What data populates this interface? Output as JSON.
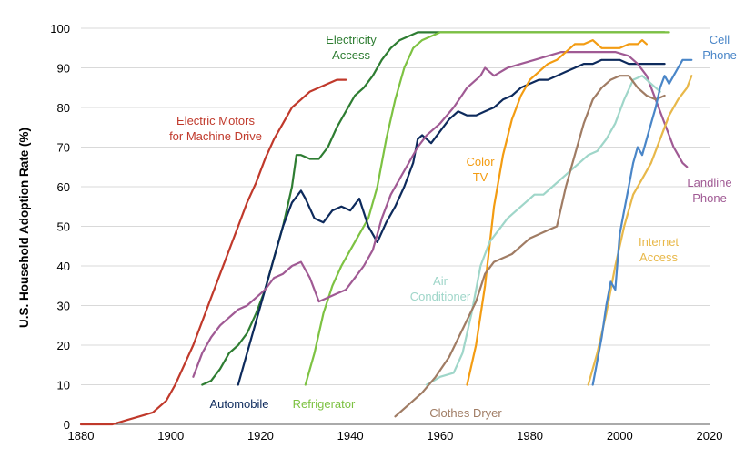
{
  "chart_data": {
    "type": "line",
    "title": "",
    "xlabel": "",
    "ylabel": "U.S. Household Adoption Rate (%)",
    "xlim": [
      1880,
      2020
    ],
    "ylim": [
      0,
      100
    ],
    "x_ticks": [
      "1880",
      "1900",
      "1920",
      "1940",
      "1960",
      "1980",
      "2000",
      "2020"
    ],
    "y_ticks": [
      "0",
      "10",
      "20",
      "30",
      "40",
      "50",
      "60",
      "70",
      "80",
      "90",
      "100"
    ],
    "grid": "horizontal",
    "legend": "none",
    "series": [
      {
        "name": "Electric Motors for Machine Drive",
        "label_lines": [
          "Electric Motors",
          "for Machine Drive"
        ],
        "color": "#c0392b",
        "x": [
          1880,
          1887,
          1890,
          1893,
          1896,
          1899,
          1901,
          1903,
          1905,
          1907,
          1909,
          1911,
          1913,
          1915,
          1917,
          1919,
          1921,
          1923,
          1925,
          1927,
          1929,
          1931,
          1933,
          1935,
          1937,
          1939
        ],
        "y": [
          0,
          0,
          1,
          2,
          3,
          6,
          10,
          15,
          20,
          26,
          32,
          38,
          44,
          50,
          56,
          61,
          67,
          72,
          76,
          80,
          82,
          84,
          85,
          86,
          87,
          87
        ]
      },
      {
        "name": "Electricity Access",
        "label_lines": [
          "Electricity",
          "Access"
        ],
        "color": "#2e7d32",
        "x": [
          1907,
          1909,
          1911,
          1913,
          1915,
          1917,
          1919,
          1921,
          1923,
          1925,
          1927,
          1928,
          1929,
          1931,
          1933,
          1935,
          1937,
          1939,
          1941,
          1943,
          1945,
          1947,
          1949,
          1951,
          1953,
          1955,
          1957,
          1960,
          1965,
          1970,
          1980,
          1990,
          2000,
          2010
        ],
        "y": [
          10,
          11,
          14,
          18,
          20,
          23,
          28,
          34,
          42,
          50,
          60,
          68,
          68,
          67,
          67,
          70,
          75,
          79,
          83,
          85,
          88,
          92,
          95,
          97,
          98,
          99,
          99,
          99,
          99,
          99,
          99,
          99,
          99,
          99
        ]
      },
      {
        "name": "Refrigerator",
        "label_lines": [
          "Refrigerator"
        ],
        "color": "#7dc242",
        "x": [
          1930,
          1932,
          1934,
          1936,
          1938,
          1940,
          1942,
          1944,
          1946,
          1948,
          1950,
          1952,
          1954,
          1956,
          1958,
          1960,
          1965,
          1970,
          1980,
          1990,
          2000,
          2011
        ],
        "y": [
          10,
          18,
          28,
          35,
          40,
          44,
          48,
          52,
          60,
          72,
          82,
          90,
          95,
          97,
          98,
          99,
          99,
          99,
          99,
          99,
          99,
          99
        ]
      },
      {
        "name": "Automobile",
        "label_lines": [
          "Automobile"
        ],
        "color": "#0d2a5c",
        "x": [
          1915,
          1917,
          1919,
          1921,
          1923,
          1925,
          1927,
          1929,
          1930,
          1932,
          1934,
          1936,
          1938,
          1940,
          1942,
          1944,
          1946,
          1948,
          1950,
          1952,
          1954,
          1955,
          1956,
          1958,
          1960,
          1962,
          1964,
          1966,
          1968,
          1970,
          1972,
          1974,
          1976,
          1978,
          1980,
          1982,
          1984,
          1986,
          1988,
          1990,
          1992,
          1994,
          1996,
          1998,
          2000,
          2002,
          2004,
          2006,
          2010
        ],
        "y": [
          10,
          18,
          26,
          34,
          42,
          50,
          56,
          59,
          57,
          52,
          51,
          54,
          55,
          54,
          57,
          50,
          46,
          51,
          55,
          60,
          66,
          72,
          73,
          71,
          74,
          77,
          79,
          78,
          78,
          79,
          80,
          82,
          83,
          85,
          86,
          87,
          87,
          88,
          89,
          90,
          91,
          91,
          92,
          92,
          92,
          91,
          91,
          91,
          91
        ]
      },
      {
        "name": "Landline Phone",
        "label_lines": [
          "Landline",
          "Phone"
        ],
        "color": "#a05a94",
        "x": [
          1905,
          1907,
          1909,
          1911,
          1913,
          1915,
          1917,
          1919,
          1921,
          1923,
          1925,
          1927,
          1929,
          1931,
          1933,
          1935,
          1937,
          1939,
          1941,
          1943,
          1945,
          1947,
          1949,
          1951,
          1953,
          1955,
          1957,
          1960,
          1963,
          1966,
          1969,
          1970,
          1972,
          1975,
          1978,
          1981,
          1984,
          1987,
          1990,
          1993,
          1996,
          1999,
          2002,
          2004,
          2006,
          2008,
          2010,
          2012,
          2014,
          2015
        ],
        "y": [
          12,
          18,
          22,
          25,
          27,
          29,
          30,
          32,
          34,
          37,
          38,
          40,
          41,
          37,
          31,
          32,
          33,
          34,
          37,
          40,
          44,
          52,
          58,
          62,
          66,
          70,
          73,
          76,
          80,
          85,
          88,
          90,
          88,
          90,
          91,
          92,
          93,
          94,
          94,
          94,
          94,
          94,
          93,
          91,
          88,
          82,
          76,
          70,
          66,
          65
        ]
      },
      {
        "name": "Color TV",
        "label_lines": [
          "Color",
          "TV"
        ],
        "color": "#f39c12",
        "x": [
          1966,
          1968,
          1970,
          1972,
          1974,
          1976,
          1978,
          1980,
          1982,
          1984,
          1986,
          1988,
          1990,
          1992,
          1994,
          1996,
          1998,
          2000,
          2002,
          2004,
          2005,
          2006
        ],
        "y": [
          10,
          20,
          35,
          55,
          68,
          77,
          83,
          87,
          89,
          91,
          92,
          94,
          96,
          96,
          97,
          95,
          95,
          95,
          96,
          96,
          97,
          96
        ]
      },
      {
        "name": "Air Conditioner",
        "label_lines": [
          "Air",
          "Conditioner"
        ],
        "color": "#9fd6c9",
        "x": [
          1957,
          1960,
          1963,
          1965,
          1967,
          1969,
          1971,
          1973,
          1975,
          1977,
          1979,
          1981,
          1983,
          1985,
          1987,
          1989,
          1991,
          1993,
          1995,
          1997,
          1999,
          2001,
          2003,
          2005,
          2007,
          2009
        ],
        "y": [
          10,
          12,
          13,
          18,
          28,
          40,
          46,
          49,
          52,
          54,
          56,
          58,
          58,
          60,
          62,
          64,
          66,
          68,
          69,
          72,
          76,
          82,
          87,
          88,
          86,
          84
        ]
      },
      {
        "name": "Clothes Dryer",
        "label_lines": [
          "Clothes Dryer"
        ],
        "color": "#a07c64",
        "x": [
          1950,
          1953,
          1956,
          1959,
          1962,
          1965,
          1968,
          1970,
          1972,
          1974,
          1976,
          1978,
          1980,
          1982,
          1984,
          1986,
          1988,
          1990,
          1992,
          1994,
          1996,
          1998,
          2000,
          2002,
          2004,
          2006,
          2008,
          2010
        ],
        "y": [
          2,
          5,
          8,
          12,
          17,
          24,
          31,
          38,
          41,
          42,
          43,
          45,
          47,
          48,
          49,
          50,
          60,
          68,
          76,
          82,
          85,
          87,
          88,
          88,
          85,
          83,
          82,
          83
        ]
      },
      {
        "name": "Internet Access",
        "label_lines": [
          "Internet",
          "Access"
        ],
        "color": "#e8b84a",
        "x": [
          1993,
          1995,
          1997,
          1999,
          2001,
          2003,
          2005,
          2007,
          2009,
          2011,
          2013,
          2015,
          2016
        ],
        "y": [
          10,
          18,
          28,
          40,
          50,
          58,
          62,
          66,
          72,
          78,
          82,
          85,
          88
        ]
      },
      {
        "name": "Cell Phone",
        "label_lines": [
          "Cell",
          "Phone"
        ],
        "color": "#4a86c8",
        "x": [
          1994,
          1995,
          1996,
          1997,
          1998,
          1999,
          2000,
          2001,
          2002,
          2003,
          2004,
          2005,
          2006,
          2007,
          2008,
          2009,
          2010,
          2011,
          2012,
          2013,
          2014,
          2015,
          2016
        ],
        "y": [
          10,
          16,
          22,
          30,
          36,
          34,
          48,
          54,
          60,
          66,
          70,
          68,
          72,
          76,
          80,
          85,
          88,
          86,
          88,
          90,
          92,
          92,
          92
        ]
      }
    ]
  }
}
